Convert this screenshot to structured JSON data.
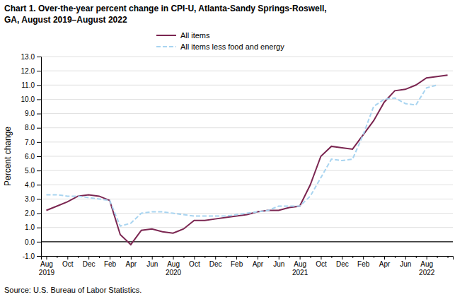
{
  "chart_data": {
    "type": "line",
    "title": "Chart 1. Over-the-year percent change in CPI-U, Atlanta-Sandy Springs-Roswell,\nGA, August 2019–August 2022",
    "ylabel": "Percent change",
    "source": "Source: U.S. Bureau of Labor Statistics.",
    "categories": [
      "Aug\n2019",
      null,
      "Oct",
      null,
      "Dec",
      null,
      "Feb",
      null,
      "Apr",
      null,
      "Jun",
      null,
      "Aug\n2020",
      null,
      "Oct",
      null,
      "Dec",
      null,
      "Feb",
      null,
      "Apr",
      null,
      "Jun",
      null,
      "Aug\n2021",
      null,
      "Oct",
      null,
      "Dec",
      null,
      "Feb",
      null,
      "Apr",
      null,
      "Jun",
      null,
      "Aug\n2022",
      null,
      null
    ],
    "series": [
      {
        "name": "All items",
        "color": "#7B2651",
        "line_style": "solid",
        "values": [
          2.2,
          2.5,
          2.8,
          3.2,
          3.3,
          3.2,
          2.9,
          0.5,
          -0.2,
          0.8,
          0.9,
          0.7,
          0.6,
          0.9,
          1.5,
          1.5,
          1.6,
          1.7,
          1.8,
          1.9,
          2.1,
          2.2,
          2.2,
          2.4,
          2.5,
          4.0,
          6.0,
          6.7,
          6.6,
          6.5,
          7.5,
          8.5,
          9.8,
          10.6,
          10.7,
          11.0,
          11.5,
          11.6,
          11.7
        ]
      },
      {
        "name": "All items less food and energy",
        "color": "#A8D4F0",
        "line_style": "dashed",
        "values": [
          3.3,
          3.3,
          3.2,
          3.2,
          3.1,
          3.0,
          2.9,
          1.1,
          1.3,
          2.0,
          2.1,
          2.1,
          2.0,
          1.9,
          1.8,
          1.8,
          1.8,
          1.8,
          1.9,
          2.0,
          2.1,
          2.2,
          2.5,
          2.5,
          2.5,
          3.2,
          4.5,
          5.8,
          5.7,
          5.8,
          7.5,
          9.5,
          10.0,
          10.1,
          9.7,
          9.6,
          10.8,
          11.0,
          null
        ]
      }
    ],
    "ylim": [
      -1.0,
      13.0
    ],
    "yticks": [
      {
        "value": -1.0,
        "label": "-1.0"
      },
      {
        "value": 0.0,
        "label": "0.0"
      },
      {
        "value": 1.0,
        "label": "1.0"
      },
      {
        "value": 2.0,
        "label": "2.0"
      },
      {
        "value": 3.0,
        "label": "3.0"
      },
      {
        "value": 4.0,
        "label": "4.0"
      },
      {
        "value": 5.0,
        "label": "5.0"
      },
      {
        "value": 6.0,
        "label": "6.0"
      },
      {
        "value": 7.0,
        "label": "7.0"
      },
      {
        "value": 8.0,
        "label": "8.0"
      },
      {
        "value": 9.0,
        "label": "9.0"
      },
      {
        "value": 10.0,
        "label": "10.0"
      },
      {
        "value": 11.0,
        "label": "11.0"
      },
      {
        "value": 12.0,
        "label": "12.0"
      },
      {
        "value": 13.0,
        "label": "13.0"
      }
    ],
    "grid": true,
    "legend": "top"
  }
}
